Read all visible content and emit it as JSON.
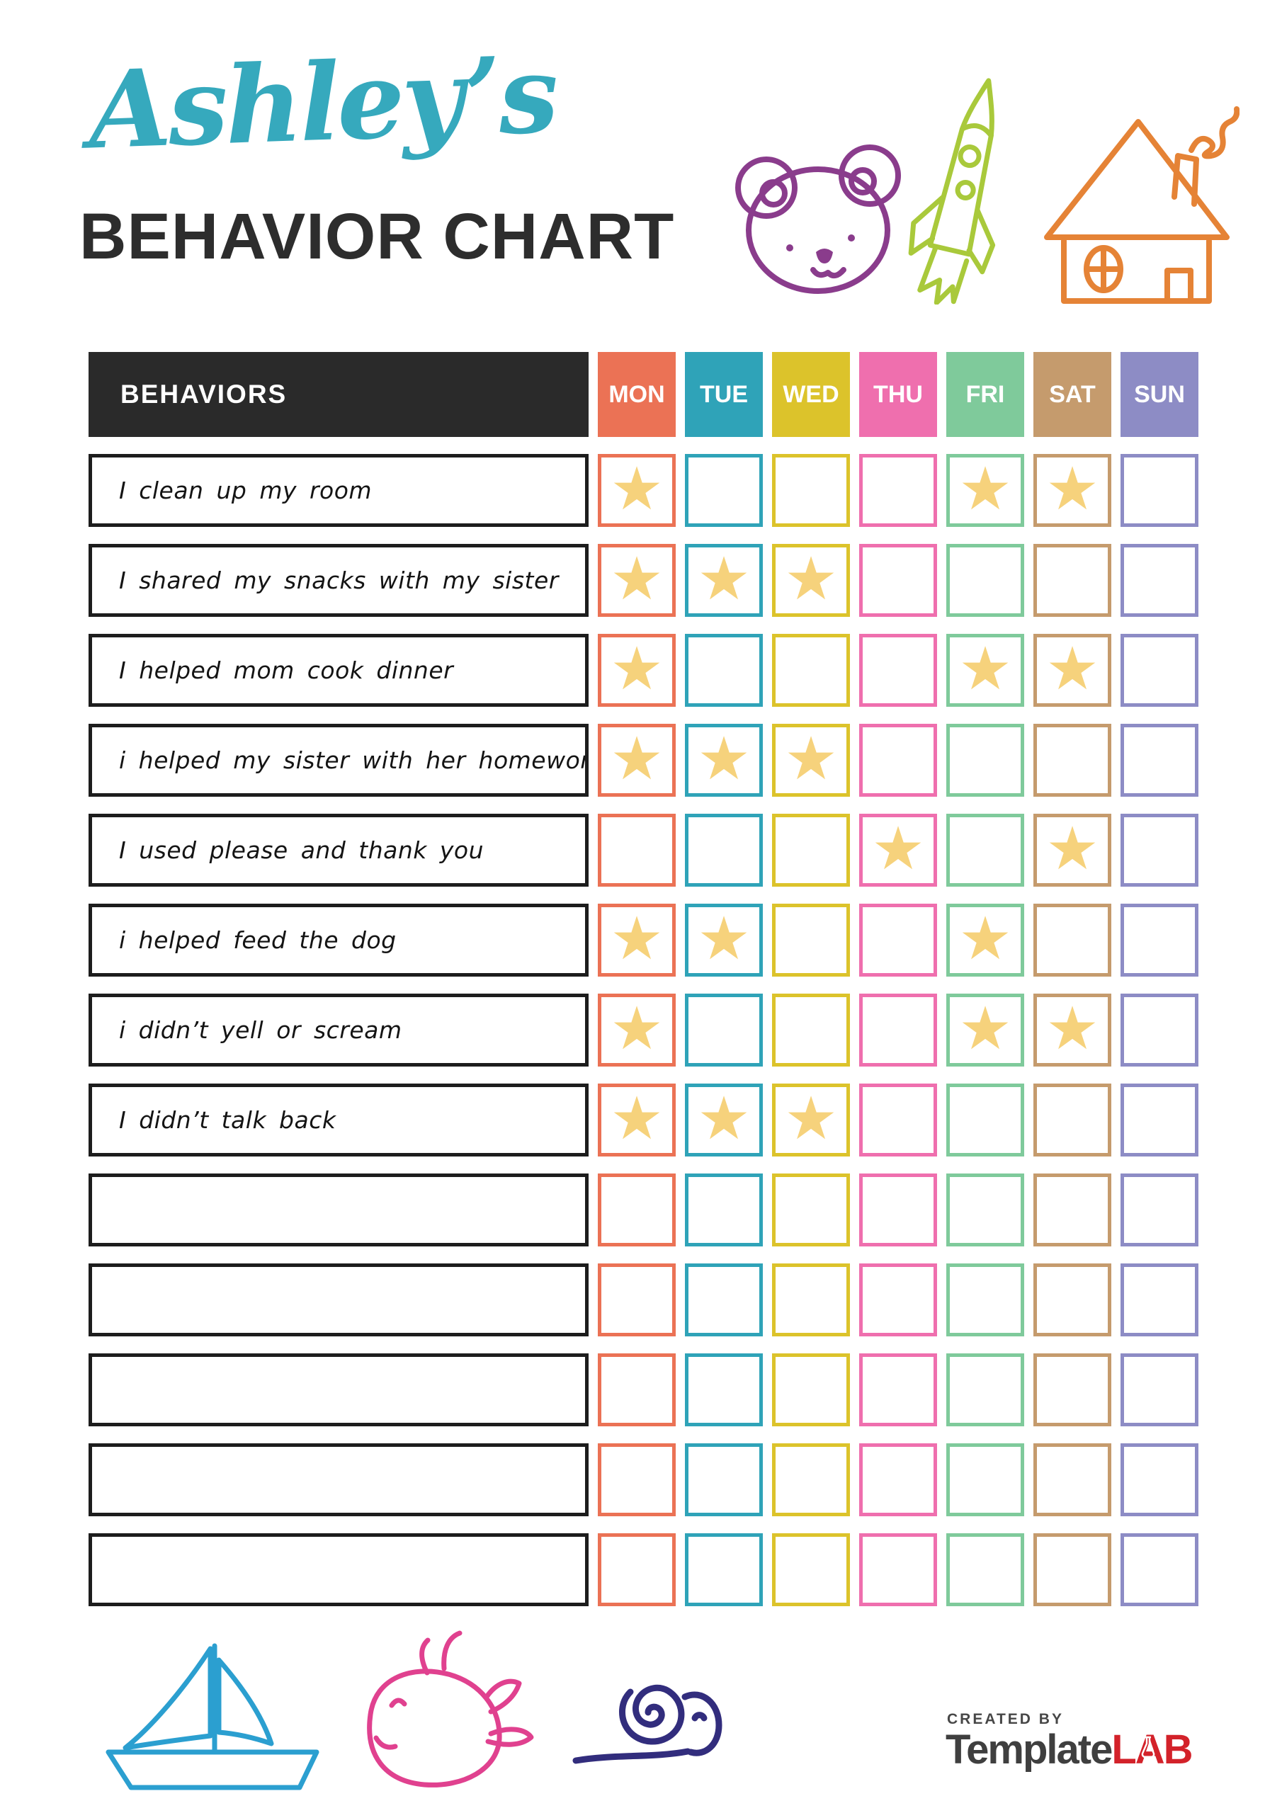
{
  "page": {
    "title_script": "Ashley’s",
    "title_main": "BEHAVIOR CHART"
  },
  "decorations": {
    "top_icons": [
      {
        "name": "bear",
        "color": "#8a3c8c"
      },
      {
        "name": "rocket",
        "color": "#a9c93b"
      },
      {
        "name": "house",
        "color": "#e58336"
      }
    ],
    "bottom_icons": [
      {
        "name": "sailboat",
        "color": "#2b9fd0"
      },
      {
        "name": "whale",
        "color": "#e0418f"
      },
      {
        "name": "snail",
        "color": "#322d7d"
      }
    ]
  },
  "table": {
    "header": {
      "behaviors_label": "BEHAVIORS",
      "header_bg": "#2a2a2a"
    },
    "days": [
      {
        "label": "MON",
        "color": "#eb7255"
      },
      {
        "label": "TUE",
        "color": "#2fa3b8"
      },
      {
        "label": "WED",
        "color": "#dcc32b"
      },
      {
        "label": "THU",
        "color": "#ef6fae"
      },
      {
        "label": "FRI",
        "color": "#7fca9b"
      },
      {
        "label": "SAT",
        "color": "#c59b6d"
      },
      {
        "label": "SUN",
        "color": "#8d8cc5"
      }
    ],
    "star_color": "#f6d27c",
    "rows": [
      {
        "behavior": "I clean up my room",
        "stars": [
          1,
          0,
          0,
          0,
          1,
          1,
          0
        ]
      },
      {
        "behavior": "I shared my snacks with my sister",
        "stars": [
          1,
          1,
          1,
          0,
          0,
          0,
          0
        ]
      },
      {
        "behavior": "I helped mom cook dinner",
        "stars": [
          1,
          0,
          0,
          0,
          1,
          1,
          0
        ]
      },
      {
        "behavior": "i helped my sister with her homework",
        "stars": [
          1,
          1,
          1,
          0,
          0,
          0,
          0
        ]
      },
      {
        "behavior": "I used please and thank you",
        "stars": [
          0,
          0,
          0,
          1,
          0,
          1,
          0
        ]
      },
      {
        "behavior": "i helped feed the dog",
        "stars": [
          1,
          1,
          0,
          0,
          1,
          0,
          0
        ]
      },
      {
        "behavior": "i didn’t yell or scream",
        "stars": [
          1,
          0,
          0,
          0,
          1,
          1,
          0
        ]
      },
      {
        "behavior": "I didn’t talk back",
        "stars": [
          1,
          1,
          1,
          0,
          0,
          0,
          0
        ]
      },
      {
        "behavior": "",
        "stars": [
          0,
          0,
          0,
          0,
          0,
          0,
          0
        ]
      },
      {
        "behavior": "",
        "stars": [
          0,
          0,
          0,
          0,
          0,
          0,
          0
        ]
      },
      {
        "behavior": "",
        "stars": [
          0,
          0,
          0,
          0,
          0,
          0,
          0
        ]
      },
      {
        "behavior": "",
        "stars": [
          0,
          0,
          0,
          0,
          0,
          0,
          0
        ]
      },
      {
        "behavior": "",
        "stars": [
          0,
          0,
          0,
          0,
          0,
          0,
          0
        ]
      }
    ]
  },
  "footer": {
    "created_by": "CREATED BY",
    "brand_template": "Template",
    "brand_lab": "LAB"
  }
}
